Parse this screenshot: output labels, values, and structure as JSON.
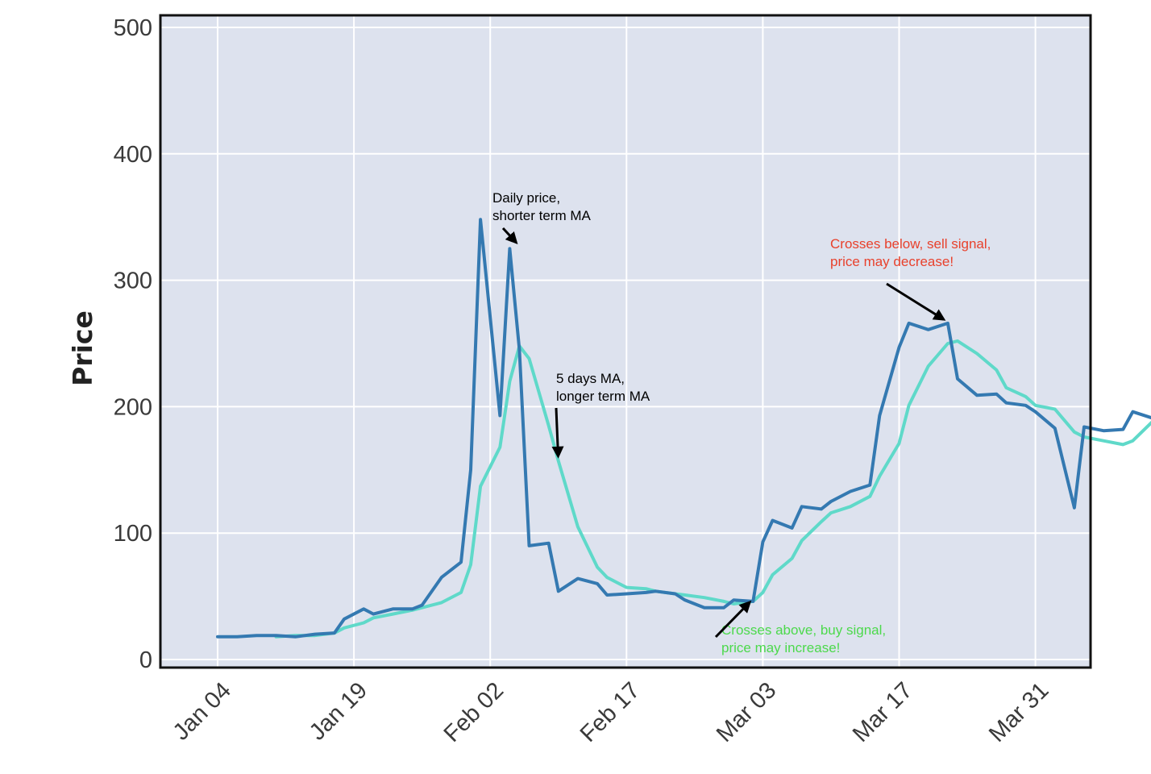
{
  "chart_data": {
    "type": "line",
    "title": "",
    "xlabel": "",
    "ylabel": "Price",
    "x_tick_labels": [
      "Jan 04",
      "Jan 19",
      "Feb 02",
      "Feb 17",
      "Mar 03",
      "Mar 17",
      "Mar 31"
    ],
    "y_tick_labels": [
      "0",
      "100",
      "200",
      "300",
      "400",
      "500"
    ],
    "ylim": [
      0,
      500
    ],
    "grid": true,
    "legend": "none",
    "series": [
      {
        "color": "#3479b1",
        "points": [
          [
            "Jan 04",
            18
          ],
          [
            "Jan 06",
            18
          ],
          [
            "Jan 08",
            19
          ],
          [
            "Jan 10",
            19
          ],
          [
            "Jan 12",
            18
          ],
          [
            "Jan 14",
            20
          ],
          [
            "Jan 16",
            21
          ],
          [
            "Jan 17",
            32
          ],
          [
            "Jan 19",
            40
          ],
          [
            "Jan 20",
            36
          ],
          [
            "Jan 22",
            40
          ],
          [
            "Jan 24",
            40
          ],
          [
            "Jan 25",
            43
          ],
          [
            "Jan 27",
            65
          ],
          [
            "Jan 29",
            77
          ],
          [
            "Jan 30",
            150
          ],
          [
            "Jan 31",
            348
          ],
          [
            "Feb 02",
            193
          ],
          [
            "Feb 03",
            325
          ],
          [
            "Feb 04",
            245
          ],
          [
            "Feb 05",
            90
          ],
          [
            "Feb 07",
            92
          ],
          [
            "Feb 08",
            54
          ],
          [
            "Feb 10",
            64
          ],
          [
            "Feb 12",
            60
          ],
          [
            "Feb 13",
            51
          ],
          [
            "Feb 15",
            52
          ],
          [
            "Feb 17",
            53
          ],
          [
            "Feb 18",
            54
          ],
          [
            "Feb 20",
            52
          ],
          [
            "Feb 21",
            47
          ],
          [
            "Feb 23",
            41
          ],
          [
            "Feb 25",
            41
          ],
          [
            "Feb 26",
            47
          ],
          [
            "Feb 28",
            46
          ],
          [
            "Mar 01",
            93
          ],
          [
            "Mar 02",
            110
          ],
          [
            "Mar 04",
            104
          ],
          [
            "Mar 05",
            121
          ],
          [
            "Mar 07",
            119
          ],
          [
            "Mar 08",
            125
          ],
          [
            "Mar 10",
            133
          ],
          [
            "Mar 12",
            138
          ],
          [
            "Mar 13",
            193
          ],
          [
            "Mar 15",
            247
          ],
          [
            "Mar 16",
            266
          ],
          [
            "Mar 18",
            261
          ],
          [
            "Mar 20",
            266
          ],
          [
            "Mar 21",
            222
          ],
          [
            "Mar 23",
            209
          ],
          [
            "Mar 25",
            210
          ],
          [
            "Mar 26",
            203
          ],
          [
            "Mar 28",
            201
          ],
          [
            "Mar 29",
            196
          ],
          [
            "Mar 31",
            183
          ],
          [
            "Apr 02",
            120
          ],
          [
            "Apr 03",
            184
          ],
          [
            "Apr 05",
            181
          ],
          [
            "Apr 07",
            182
          ],
          [
            "Apr 08",
            196
          ],
          [
            "Apr 10",
            191
          ]
        ]
      },
      {
        "color": "#5fd9c9",
        "points": [
          [
            "Jan 10",
            18
          ],
          [
            "Jan 12",
            19
          ],
          [
            "Jan 14",
            19
          ],
          [
            "Jan 16",
            21
          ],
          [
            "Jan 17",
            25
          ],
          [
            "Jan 19",
            29
          ],
          [
            "Jan 20",
            33
          ],
          [
            "Jan 22",
            36
          ],
          [
            "Jan 24",
            39
          ],
          [
            "Jan 25",
            41
          ],
          [
            "Jan 27",
            45
          ],
          [
            "Jan 29",
            53
          ],
          [
            "Jan 30",
            75
          ],
          [
            "Jan 31",
            137
          ],
          [
            "Feb 02",
            168
          ],
          [
            "Feb 03",
            220
          ],
          [
            "Feb 04",
            248
          ],
          [
            "Feb 05",
            238
          ],
          [
            "Feb 07",
            185
          ],
          [
            "Feb 08",
            157
          ],
          [
            "Feb 10",
            105
          ],
          [
            "Feb 12",
            73
          ],
          [
            "Feb 13",
            65
          ],
          [
            "Feb 15",
            57
          ],
          [
            "Feb 17",
            56
          ],
          [
            "Feb 18",
            54
          ],
          [
            "Feb 20",
            52
          ],
          [
            "Feb 21",
            51
          ],
          [
            "Feb 23",
            49
          ],
          [
            "Feb 25",
            46
          ],
          [
            "Feb 26",
            44
          ],
          [
            "Feb 28",
            46
          ],
          [
            "Mar 01",
            53
          ],
          [
            "Mar 02",
            67
          ],
          [
            "Mar 04",
            80
          ],
          [
            "Mar 05",
            94
          ],
          [
            "Mar 07",
            109
          ],
          [
            "Mar 08",
            116
          ],
          [
            "Mar 10",
            121
          ],
          [
            "Mar 12",
            129
          ],
          [
            "Mar 13",
            145
          ],
          [
            "Mar 15",
            171
          ],
          [
            "Mar 16",
            201
          ],
          [
            "Mar 18",
            232
          ],
          [
            "Mar 20",
            250
          ],
          [
            "Mar 21",
            252
          ],
          [
            "Mar 23",
            242
          ],
          [
            "Mar 25",
            229
          ],
          [
            "Mar 26",
            215
          ],
          [
            "Mar 28",
            208
          ],
          [
            "Mar 29",
            201
          ],
          [
            "Mar 31",
            198
          ],
          [
            "Apr 02",
            180
          ],
          [
            "Apr 03",
            176
          ],
          [
            "Apr 05",
            173
          ],
          [
            "Apr 07",
            170
          ],
          [
            "Apr 08",
            173
          ],
          [
            "Apr 10",
            188
          ]
        ]
      }
    ],
    "annotations": [
      {
        "text_lines": [
          "Daily price,",
          "shorter term MA"
        ],
        "color": "#000000",
        "points_to": [
          "Feb 04",
          327
        ]
      },
      {
        "text_lines": [
          "5 days MA,",
          "longer term MA"
        ],
        "color": "#000000",
        "points_to": [
          "Feb 08",
          157
        ]
      },
      {
        "text_lines": [
          "Crosses below, sell signal,",
          "price may decrease!"
        ],
        "color": "#e8412c",
        "points_to": [
          "Mar 20",
          267
        ]
      },
      {
        "text_lines": [
          "Crosses above, buy signal,",
          "price may increase!"
        ],
        "color": "#4cd94c",
        "points_to": [
          "Feb 28",
          48
        ]
      }
    ]
  }
}
